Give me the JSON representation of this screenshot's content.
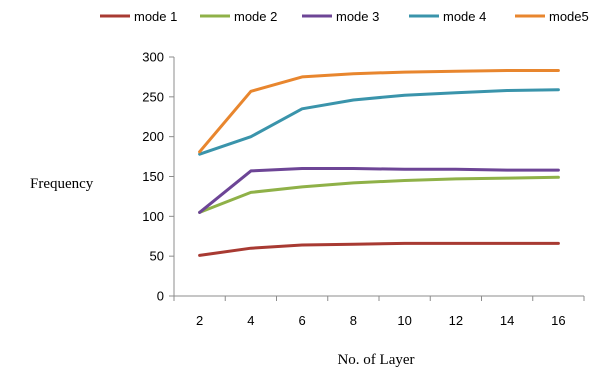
{
  "chart_data": {
    "type": "line",
    "title": "",
    "xlabel": "No. of Layer",
    "ylabel": "Frequency",
    "x": [
      2,
      4,
      6,
      8,
      10,
      12,
      14,
      16
    ],
    "xlim": [
      1,
      17
    ],
    "ylim": [
      0,
      300
    ],
    "y_ticks": [
      0,
      50,
      100,
      150,
      200,
      250,
      300
    ],
    "grid": false,
    "legend_position": "top",
    "series": [
      {
        "name": "mode 1",
        "color": "#a83a32",
        "values": [
          51,
          60,
          64,
          65,
          66,
          66,
          66,
          66
        ]
      },
      {
        "name": "mode 2",
        "color": "#8fb148",
        "values": [
          105,
          130,
          137,
          142,
          145,
          147,
          148,
          149
        ]
      },
      {
        "name": "mode 3",
        "color": "#6d4596",
        "values": [
          105,
          157,
          160,
          160,
          159,
          159,
          158,
          158
        ]
      },
      {
        "name": "mode 4",
        "color": "#3a94ab",
        "values": [
          178,
          200,
          235,
          246,
          252,
          255,
          258,
          259
        ]
      },
      {
        "name": "mode5",
        "color": "#e8862e",
        "values": [
          181,
          257,
          275,
          279,
          281,
          282,
          283,
          283
        ]
      }
    ]
  }
}
